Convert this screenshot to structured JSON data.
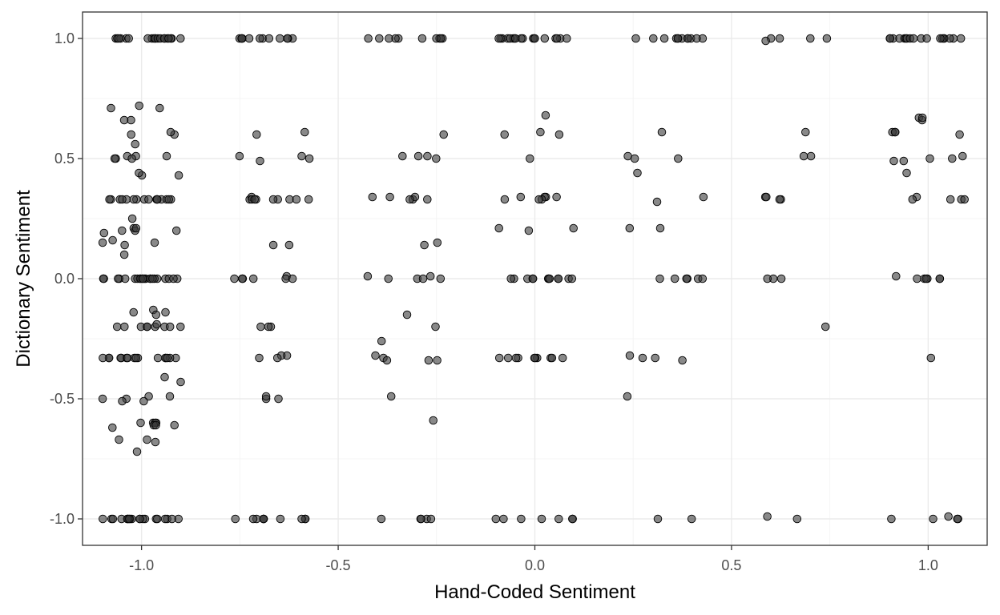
{
  "chart_data": {
    "type": "scatter",
    "xlabel": "Hand-Coded Sentiment",
    "ylabel": "Dictionary Sentiment",
    "xlim": [
      -1.15,
      1.15
    ],
    "ylim": [
      -1.11,
      1.11
    ],
    "x_ticks": [
      -1.0,
      -0.5,
      0.0,
      0.5,
      1.0
    ],
    "y_ticks": [
      -1.0,
      -0.5,
      0.0,
      0.5,
      1.0
    ],
    "x_tick_labels": [
      "-1.0",
      "-0.5",
      "0.0",
      "0.5",
      "1.0"
    ],
    "y_tick_labels": [
      "-1.0",
      "-0.5",
      "0.0",
      "0.5",
      "1.0"
    ],
    "grid": true,
    "jitter": "horizontal",
    "point_color": "#3a3a3a",
    "point_opacity": 0.6,
    "groups": [
      {
        "x": -1.0,
        "y": [
          1.0,
          1.0,
          1.0,
          1.0,
          1.0,
          1.0,
          1.0,
          1.0,
          1.0,
          1.0,
          1.0,
          1.0,
          1.0,
          1.0,
          1.0,
          1.0,
          1.0,
          1.0,
          1.0,
          1.0,
          0.71,
          0.72,
          0.71,
          0.66,
          0.66,
          0.6,
          0.6,
          0.61,
          0.56,
          0.51,
          0.51,
          0.5,
          0.5,
          0.51,
          0.5,
          0.43,
          0.43,
          0.44,
          0.33,
          0.33,
          0.33,
          0.33,
          0.33,
          0.33,
          0.33,
          0.33,
          0.33,
          0.33,
          0.33,
          0.33,
          0.33,
          0.33,
          0.33,
          0.33,
          0.25,
          0.21,
          0.2,
          0.2,
          0.21,
          0.19,
          0.2,
          0.16,
          0.15,
          0.15,
          0.14,
          0.1,
          0.0,
          0.0,
          0.0,
          0.0,
          0.0,
          0.0,
          0.0,
          0.0,
          0.0,
          0.0,
          0.0,
          0.0,
          0.0,
          0.0,
          0.0,
          0.0,
          0.0,
          0.0,
          0.0,
          0.0,
          0.0,
          0.0,
          -0.13,
          -0.14,
          -0.14,
          -0.15,
          -0.2,
          -0.2,
          -0.2,
          -0.2,
          -0.2,
          -0.2,
          -0.2,
          -0.2,
          -0.2,
          -0.19,
          -0.33,
          -0.33,
          -0.33,
          -0.33,
          -0.33,
          -0.33,
          -0.33,
          -0.33,
          -0.33,
          -0.33,
          -0.33,
          -0.33,
          -0.33,
          -0.33,
          -0.33,
          -0.33,
          -0.41,
          -0.43,
          -0.49,
          -0.49,
          -0.5,
          -0.5,
          -0.51,
          -0.51,
          -0.6,
          -0.6,
          -0.6,
          -0.6,
          -0.61,
          -0.61,
          -0.61,
          -0.62,
          -0.67,
          -0.67,
          -0.68,
          -0.72,
          -1.0,
          -1.0,
          -1.0,
          -1.0,
          -1.0,
          -1.0,
          -1.0,
          -1.0,
          -1.0,
          -1.0,
          -1.0,
          -1.0,
          -1.0,
          -1.0,
          -1.0,
          -1.0,
          -1.0,
          -1.0,
          -1.0,
          -1.0
        ]
      },
      {
        "x": -0.67,
        "y": [
          1.0,
          1.0,
          1.0,
          1.0,
          1.0,
          1.0,
          1.0,
          1.0,
          1.0,
          1.0,
          1.0,
          1.0,
          0.61,
          0.6,
          0.51,
          0.51,
          0.49,
          0.5,
          0.33,
          0.34,
          0.33,
          0.33,
          0.33,
          0.33,
          0.33,
          0.33,
          0.33,
          0.33,
          0.14,
          0.14,
          0.01,
          0.0,
          0.0,
          0.0,
          0.0,
          0.0,
          0.0,
          -0.2,
          -0.2,
          -0.2,
          -0.32,
          -0.32,
          -0.33,
          -0.33,
          -0.5,
          -0.49,
          -0.5,
          -1.0,
          -1.0,
          -1.0,
          -1.0,
          -1.0,
          -1.0,
          -1.0,
          -1.0,
          -1.0,
          -1.0
        ]
      },
      {
        "x": -0.33,
        "y": [
          1.0,
          1.0,
          1.0,
          1.0,
          1.0,
          1.0,
          1.0,
          1.0,
          1.0,
          1.0,
          0.6,
          0.51,
          0.51,
          0.51,
          0.5,
          0.34,
          0.33,
          0.33,
          0.34,
          0.33,
          0.34,
          0.15,
          0.14,
          0.01,
          0.0,
          0.0,
          0.01,
          0.0,
          0.0,
          -0.15,
          -0.2,
          -0.26,
          -0.32,
          -0.33,
          -0.34,
          -0.34,
          -0.34,
          -0.49,
          -0.59,
          -1.0,
          -1.0,
          -1.0,
          -1.0,
          -1.0
        ]
      },
      {
        "x": 0.0,
        "y": [
          1.0,
          1.0,
          1.0,
          1.0,
          1.0,
          1.0,
          1.0,
          1.0,
          1.0,
          1.0,
          1.0,
          1.0,
          1.0,
          1.0,
          1.0,
          1.0,
          1.0,
          1.0,
          0.68,
          0.61,
          0.6,
          0.6,
          0.5,
          0.34,
          0.34,
          0.34,
          0.33,
          0.33,
          0.33,
          0.34,
          0.2,
          0.21,
          0.21,
          0.0,
          0.0,
          0.0,
          0.0,
          0.0,
          0.0,
          0.0,
          0.0,
          0.0,
          0.0,
          0.0,
          0.0,
          -0.33,
          -0.33,
          -0.33,
          -0.33,
          -0.33,
          -0.33,
          -0.33,
          -0.33,
          -0.33,
          -0.33,
          -1.0,
          -1.0,
          -1.0,
          -1.0,
          -1.0,
          -1.0,
          -1.0
        ]
      },
      {
        "x": 0.33,
        "y": [
          1.0,
          1.0,
          1.0,
          1.0,
          1.0,
          1.0,
          1.0,
          1.0,
          1.0,
          1.0,
          1.0,
          1.0,
          0.61,
          0.51,
          0.5,
          0.5,
          0.44,
          0.34,
          0.32,
          0.21,
          0.21,
          0.0,
          0.0,
          0.0,
          0.0,
          0.0,
          0.0,
          -0.33,
          -0.33,
          -0.34,
          -0.32,
          -0.49,
          -1.0,
          -1.0
        ]
      },
      {
        "x": 0.67,
        "y": [
          1.0,
          1.0,
          1.0,
          1.0,
          0.99,
          0.61,
          0.51,
          0.51,
          0.34,
          0.33,
          0.33,
          0.34,
          0.0,
          0.0,
          0.0,
          -0.2,
          -0.99,
          -1.0
        ]
      },
      {
        "x": 1.0,
        "y": [
          1.0,
          1.0,
          1.0,
          1.0,
          1.0,
          1.0,
          1.0,
          1.0,
          1.0,
          1.0,
          1.0,
          1.0,
          1.0,
          1.0,
          1.0,
          1.0,
          1.0,
          1.0,
          0.67,
          0.66,
          0.67,
          0.61,
          0.61,
          0.6,
          0.61,
          0.5,
          0.51,
          0.5,
          0.49,
          0.49,
          0.44,
          0.33,
          0.33,
          0.34,
          0.33,
          0.33,
          0.01,
          0.0,
          0.0,
          0.0,
          0.0,
          0.0,
          0.0,
          -0.33,
          -1.0,
          -1.0,
          -1.0,
          -0.99,
          -1.0
        ]
      }
    ]
  }
}
